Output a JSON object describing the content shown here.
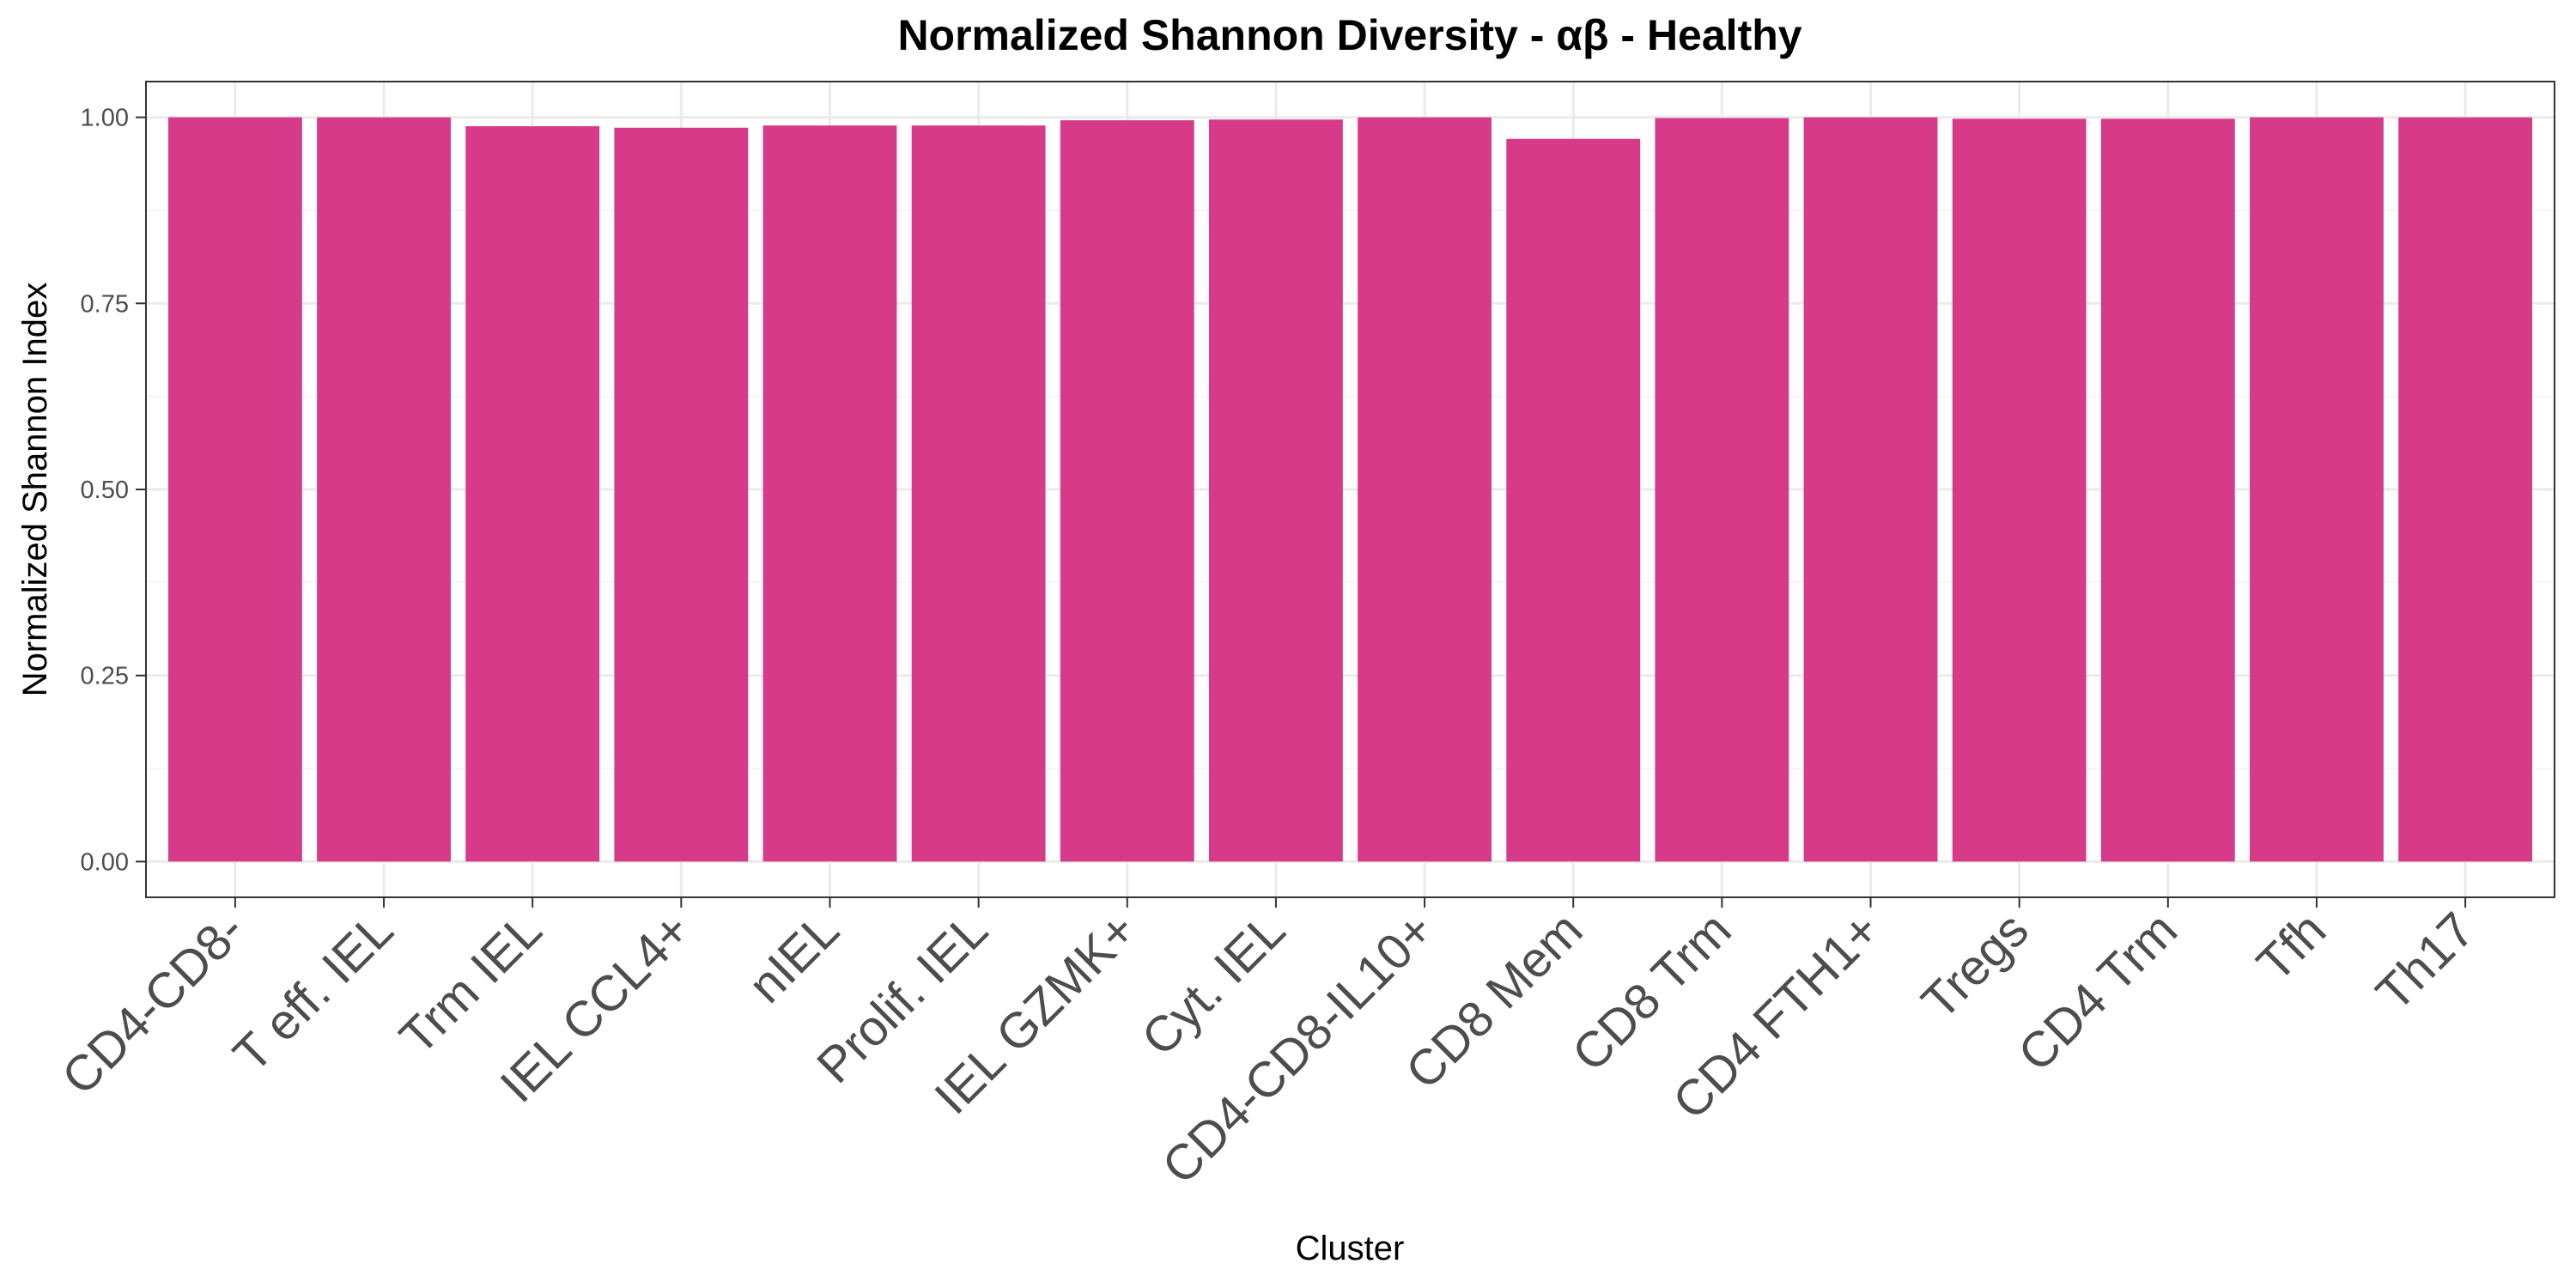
{
  "chart_data": {
    "type": "bar",
    "title": "Normalized Shannon Diversity - αβ - Healthy",
    "xlabel": "Cluster",
    "ylabel": "Normalized Shannon Index",
    "categories": [
      "CD4-CD8-",
      "T eff. IEL",
      "Trm IEL",
      "IEL CCL4+",
      "nIEL",
      "Prolif. IEL",
      "IEL GZMK+",
      "Cyt. IEL",
      "CD4-CD8-IL10+",
      "CD8 Mem",
      "CD8 Trm",
      "CD4 FTH1+",
      "Tregs",
      "CD4 Trm",
      "Tfh",
      "Th17"
    ],
    "values": [
      1.0,
      1.0,
      0.988,
      0.986,
      0.989,
      0.989,
      0.996,
      0.997,
      1.0,
      0.971,
      0.999,
      1.0,
      0.998,
      0.998,
      1.0,
      1.0
    ],
    "yticks": [
      "0.00",
      "0.25",
      "0.50",
      "0.75",
      "1.00"
    ],
    "ylim": [
      -0.048,
      1.048
    ],
    "bar_color": "#D63A89",
    "grid": true,
    "legend": "none"
  }
}
